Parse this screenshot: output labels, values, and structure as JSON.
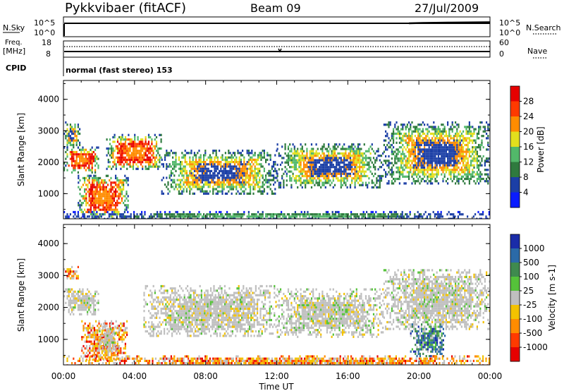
{
  "header": {
    "title": "Pykkvibaer (fitACF)",
    "beam": "Beam 09",
    "date": "27/Jul/2009"
  },
  "panels": {
    "nsky": {
      "label": "N.Sky",
      "right_label": "N.Search",
      "left_ticks": [
        "10^5",
        "10^0"
      ],
      "right_ticks": [
        "10^5",
        "10^0"
      ]
    },
    "freq": {
      "label_line1": "Freq.",
      "label_line2": "[MHz]",
      "left_ticks": [
        "18",
        "8"
      ],
      "right_ticks": [
        "60",
        "0"
      ],
      "right_label": "Nave"
    },
    "cpid": {
      "label": "CPID",
      "text": "normal (fast stereo) 153"
    }
  },
  "chart_data": [
    {
      "type": "heatmap",
      "title": "",
      "xlabel": "",
      "ylabel": "Slant Range [km]",
      "xlim": [
        "00:00",
        "24:00"
      ],
      "ylim": [
        200,
        4600
      ],
      "yticks": [
        1000,
        2000,
        3000,
        4000
      ],
      "colorbar": {
        "label": "Power [dB]",
        "ticks": [
          "4",
          "8",
          "12",
          "16",
          "20",
          "24",
          "28"
        ],
        "colors": [
          "#0a1cff",
          "#1c3fa6",
          "#2f7a3e",
          "#52b86a",
          "#e2df1d",
          "#ff8c00",
          "#ff3a00",
          "#e60000"
        ]
      },
      "regions": [
        {
          "x": [
            0.0,
            0.9
          ],
          "y": [
            2500,
            3300
          ],
          "level": "medium"
        },
        {
          "x": [
            0.0,
            2.0
          ],
          "y": [
            1700,
            2500
          ],
          "level": "high"
        },
        {
          "x": [
            0.8,
            3.6
          ],
          "y": [
            250,
            1600
          ],
          "level": "high"
        },
        {
          "x": [
            2.4,
            5.5
          ],
          "y": [
            1800,
            2900
          ],
          "level": "high"
        },
        {
          "x": [
            5.5,
            12.0
          ],
          "y": [
            1000,
            2400
          ],
          "level": "medium"
        },
        {
          "x": [
            12.0,
            18.0
          ],
          "y": [
            1200,
            2600
          ],
          "level": "medium"
        },
        {
          "x": [
            18.0,
            24.0
          ],
          "y": [
            1300,
            3300
          ],
          "level": "medium"
        },
        {
          "x": [
            0.0,
            24.0
          ],
          "y": [
            200,
            450
          ],
          "level": "low"
        }
      ]
    },
    {
      "type": "heatmap",
      "title": "",
      "xlabel": "Time UT",
      "ylabel": "Slant Range [km]",
      "xlim": [
        "00:00",
        "24:00"
      ],
      "xticks": [
        "00:00",
        "04:00",
        "08:00",
        "12:00",
        "16:00",
        "20:00",
        "00:00"
      ],
      "ylim": [
        200,
        4600
      ],
      "yticks": [
        1000,
        2000,
        3000,
        4000
      ],
      "colorbar": {
        "label": "Velocity [m s-1]",
        "ticks": [
          "1000",
          "500",
          "100",
          "25",
          "-25",
          "-100",
          "-500",
          "-1000"
        ],
        "colors": [
          "#1a2ca8",
          "#2b6aa8",
          "#3f8a4e",
          "#55c23a",
          "#bfbfbf",
          "#f3c200",
          "#ff8c00",
          "#ff3a00",
          "#e60000"
        ]
      },
      "regions": [
        {
          "x": [
            0.0,
            0.8
          ],
          "y": [
            2900,
            3300
          ],
          "level": "negative"
        },
        {
          "x": [
            0.0,
            2.0
          ],
          "y": [
            1800,
            2600
          ],
          "level": "near-zero"
        },
        {
          "x": [
            1.0,
            3.6
          ],
          "y": [
            350,
            1600
          ],
          "level": "negative"
        },
        {
          "x": [
            2.0,
            3.0
          ],
          "y": [
            600,
            1500
          ],
          "level": "near-zero"
        },
        {
          "x": [
            4.5,
            12.0
          ],
          "y": [
            1100,
            2700
          ],
          "level": "near-zero"
        },
        {
          "x": [
            12.0,
            18.0
          ],
          "y": [
            1100,
            2600
          ],
          "level": "near-zero"
        },
        {
          "x": [
            18.0,
            24.0
          ],
          "y": [
            1300,
            3200
          ],
          "level": "near-zero"
        },
        {
          "x": [
            19.5,
            21.5
          ],
          "y": [
            500,
            1500
          ],
          "level": "positive"
        },
        {
          "x": [
            0.0,
            24.0
          ],
          "y": [
            200,
            500
          ],
          "level": "negative"
        }
      ]
    }
  ]
}
